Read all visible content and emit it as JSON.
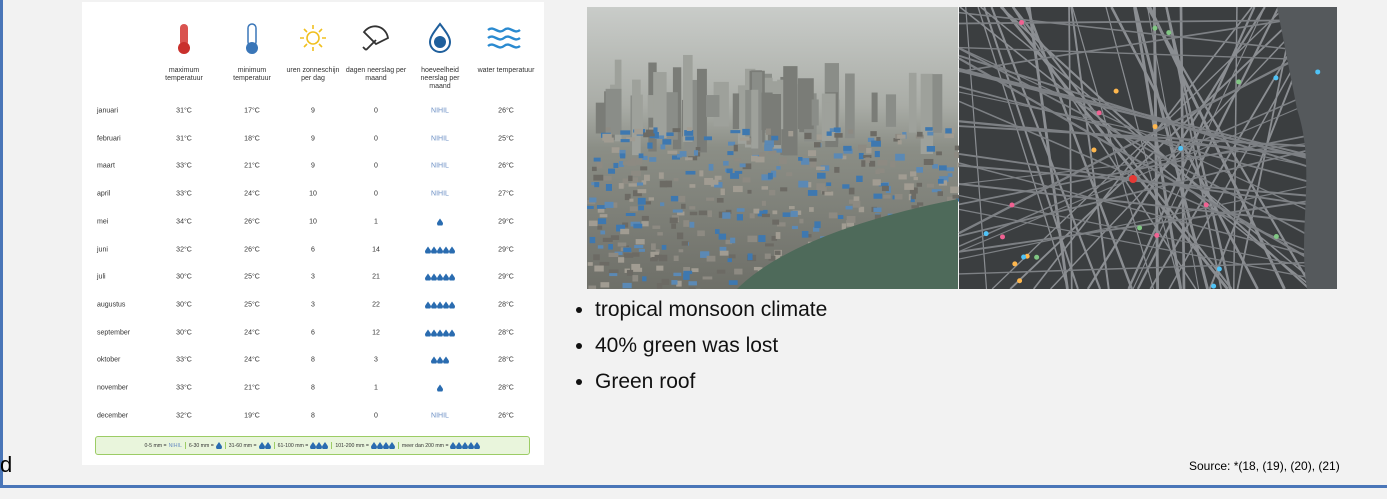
{
  "table": {
    "headers": [
      "maximum temperatuur",
      "minimum temperatuur",
      "uren zonneschijn per dag",
      "dagen neerslag per maand",
      "hoeveelheid neerslag per maand",
      "water temperatuur"
    ],
    "rows": [
      [
        "januari",
        "31°C",
        "17°C",
        9,
        0,
        "NIHIL",
        "26°C"
      ],
      [
        "februari",
        "31°C",
        "18°C",
        9,
        0,
        "NIHIL",
        "25°C"
      ],
      [
        "maart",
        "33°C",
        "21°C",
        9,
        0,
        "NIHIL",
        "26°C"
      ],
      [
        "april",
        "33°C",
        "24°C",
        10,
        0,
        "NIHIL",
        "27°C"
      ],
      [
        "mei",
        "34°C",
        "26°C",
        10,
        1,
        1,
        "29°C"
      ],
      [
        "juni",
        "32°C",
        "26°C",
        6,
        14,
        5,
        "29°C"
      ],
      [
        "juli",
        "30°C",
        "25°C",
        3,
        21,
        5,
        "29°C"
      ],
      [
        "augustus",
        "30°C",
        "25°C",
        3,
        22,
        5,
        "28°C"
      ],
      [
        "september",
        "30°C",
        "24°C",
        6,
        12,
        5,
        "28°C"
      ],
      [
        "oktober",
        "33°C",
        "24°C",
        8,
        3,
        3,
        "28°C"
      ],
      [
        "november",
        "33°C",
        "21°C",
        8,
        1,
        1,
        "28°C"
      ],
      [
        "december",
        "32°C",
        "19°C",
        8,
        0,
        "NIHIL",
        "26°C"
      ]
    ],
    "legend": [
      {
        "range": "0-5 mm =",
        "label": "NIHIL"
      },
      {
        "range": "6-30 mm =",
        "drops": 1
      },
      {
        "range": "31-60 mm =",
        "drops": 2
      },
      {
        "range": "61-100 mm =",
        "drops": 3
      },
      {
        "range": "101-200 mm =",
        "drops": 4
      },
      {
        "range": "meer dan 200 mm =",
        "drops": 5
      }
    ]
  },
  "bullets": [
    "tropical monsoon climate",
    "40% green was lost",
    "Green roof"
  ],
  "source": "Source: *(18, (19), (20), (21)",
  "fragment": "d"
}
